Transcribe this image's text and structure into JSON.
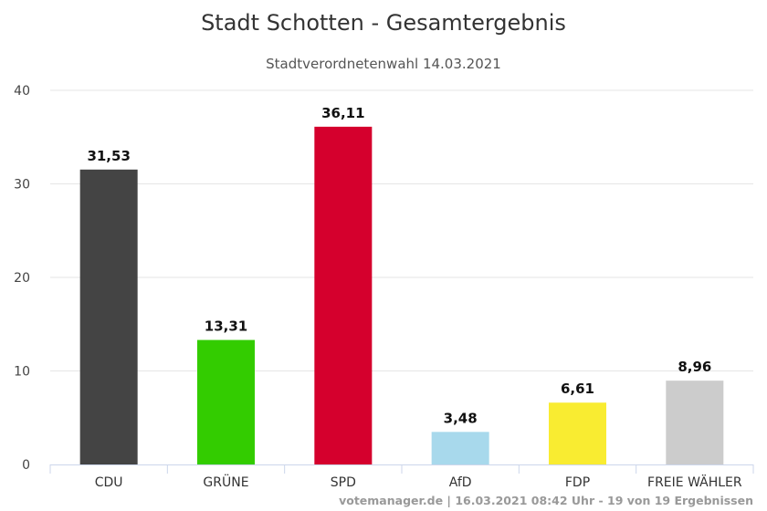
{
  "chart_data": {
    "type": "bar",
    "title": "Stadt Schotten - Gesamtergebnis",
    "subtitle": "Stadtverordnetenwahl 14.03.2021",
    "categories": [
      "CDU",
      "GRÜNE",
      "SPD",
      "AfD",
      "FDP",
      "FREIE WÄHLER"
    ],
    "values": [
      31.53,
      13.31,
      36.11,
      3.48,
      6.61,
      8.96
    ],
    "value_labels": [
      "31,53",
      "13,31",
      "36,11",
      "3,48",
      "6,61",
      "8,96"
    ],
    "colors": [
      "#444444",
      "#33cc00",
      "#d5002d",
      "#a8d9ec",
      "#f9ec31",
      "#cccccc"
    ],
    "yticks": [
      "0",
      "10",
      "20",
      "30",
      "40"
    ],
    "ylim": [
      0,
      40
    ],
    "grid": true,
    "legend": "none",
    "credit": "votemanager.de | 16.03.2021 08:42 Uhr - 19 von 19 Ergebnissen"
  }
}
